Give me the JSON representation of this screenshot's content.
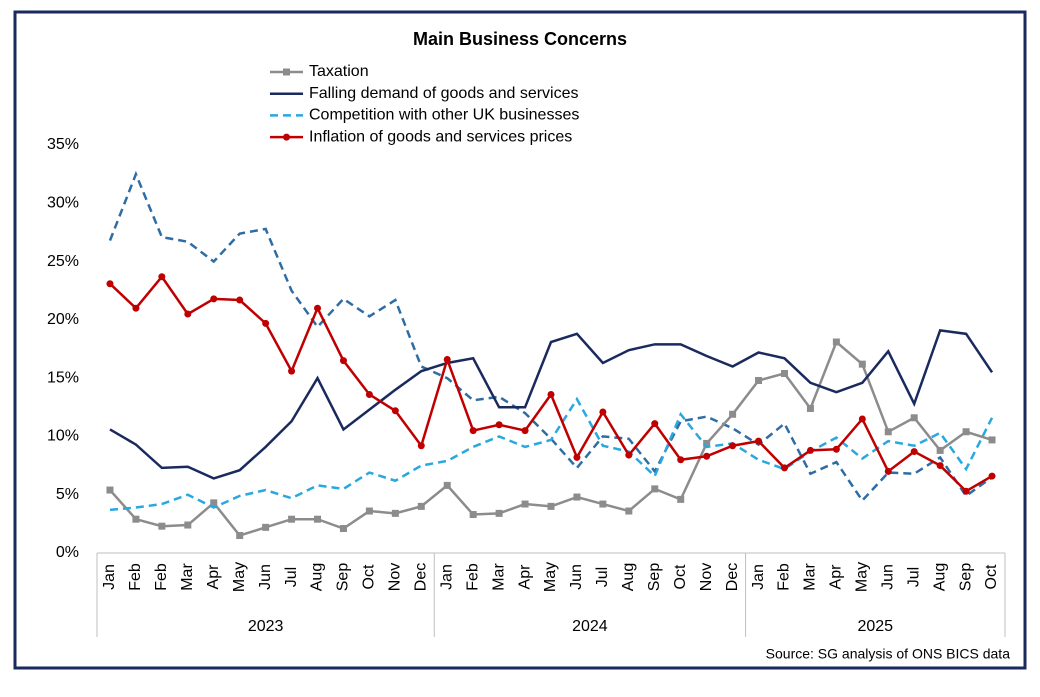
{
  "chart_data": {
    "type": "line",
    "title": "Main Business  Concerns",
    "source": "Source: SG analysis of ONS BICS data",
    "groups": [
      {
        "label": "2023",
        "categories": [
          "Jan",
          "Feb",
          "Feb",
          "Mar",
          "Apr",
          "May",
          "Jun",
          "Jul",
          "Aug",
          "Sep",
          "Oct",
          "Nov",
          "Dec"
        ]
      },
      {
        "label": "2024",
        "categories": [
          "Jan",
          "Feb",
          "Mar",
          "Apr",
          "May",
          "Jun",
          "Jul",
          "Aug",
          "Sep",
          "Oct",
          "Nov",
          "Dec"
        ]
      },
      {
        "label": "2025",
        "categories": [
          "Jan",
          "Feb",
          "Mar",
          "Apr",
          "May",
          "Jun",
          "Jul",
          "Aug",
          "Sep",
          "Oct"
        ]
      }
    ],
    "ylim": [
      0,
      35
    ],
    "yticks": [
      {
        "value": 0,
        "label": "0%"
      },
      {
        "value": 5,
        "label": "5%"
      },
      {
        "value": 10,
        "label": "10%"
      },
      {
        "value": 15,
        "label": "15%"
      },
      {
        "value": 20,
        "label": "20%"
      },
      {
        "value": 25,
        "label": "25%"
      },
      {
        "value": 30,
        "label": "30%"
      },
      {
        "value": 35,
        "label": "35%"
      }
    ],
    "grid": false,
    "series": [
      {
        "color": "#2e6da4",
        "dash": true,
        "values": [
          26.8,
          32.5,
          27.1,
          26.7,
          25.0,
          27.4,
          27.8,
          22.5,
          19.4,
          21.8,
          20.3,
          21.7,
          16.0,
          15.0,
          13.1,
          13.4,
          12.0,
          9.8,
          7.3,
          10.0,
          9.8,
          7.0,
          11.3,
          11.7,
          10.7,
          9.3,
          11.1,
          6.8,
          7.8,
          4.5,
          6.9,
          6.8,
          8.2,
          4.9,
          6.5
        ]
      },
      {
        "name": "Taxation",
        "color": "#8c8c8c",
        "marker": "square",
        "values": [
          5.4,
          2.9,
          2.3,
          2.4,
          4.3,
          1.5,
          2.2,
          2.9,
          2.9,
          2.1,
          3.6,
          3.4,
          4.0,
          5.8,
          3.3,
          3.4,
          4.2,
          4.0,
          4.8,
          4.2,
          3.6,
          5.5,
          4.6,
          9.4,
          11.9,
          14.8,
          15.4,
          12.4,
          18.1,
          16.2,
          10.4,
          11.6,
          8.8,
          10.4,
          9.7
        ]
      },
      {
        "name": "Falling demand of goods and services",
        "color": "#1a2a5e",
        "values": [
          10.6,
          9.3,
          7.3,
          7.4,
          6.4,
          7.1,
          9.1,
          11.3,
          15.0,
          10.6,
          12.3,
          14.0,
          15.6,
          16.3,
          16.7,
          12.5,
          12.5,
          18.1,
          18.8,
          16.3,
          17.4,
          17.9,
          17.9,
          16.9,
          16.0,
          17.2,
          16.7,
          14.6,
          13.8,
          14.6,
          17.3,
          12.8,
          19.1,
          18.8,
          15.5
        ]
      },
      {
        "name": "Competition with other UK businesses",
        "color": "#29a8e0",
        "dash": true,
        "values": [
          3.7,
          3.9,
          4.2,
          5.0,
          3.9,
          4.9,
          5.4,
          4.7,
          5.8,
          5.5,
          6.9,
          6.2,
          7.5,
          7.9,
          9.1,
          10.0,
          9.1,
          9.7,
          13.2,
          9.2,
          8.7,
          6.6,
          11.9,
          9.1,
          9.4,
          8.0,
          7.2,
          8.7,
          9.9,
          8.1,
          9.6,
          9.2,
          10.3,
          7.2,
          11.6
        ]
      },
      {
        "name": "Inflation of goods and services prices",
        "color": "#c00000",
        "marker": "circle",
        "values": [
          23.1,
          21.0,
          23.7,
          20.5,
          21.8,
          21.7,
          19.7,
          15.6,
          21.0,
          16.5,
          13.6,
          12.2,
          9.2,
          16.6,
          10.5,
          11.0,
          10.5,
          13.6,
          8.2,
          12.1,
          8.4,
          11.1,
          8.0,
          8.3,
          9.2,
          9.6,
          7.3,
          8.8,
          8.9,
          11.5,
          7.0,
          8.7,
          7.5,
          5.3,
          6.6
        ]
      }
    ]
  }
}
